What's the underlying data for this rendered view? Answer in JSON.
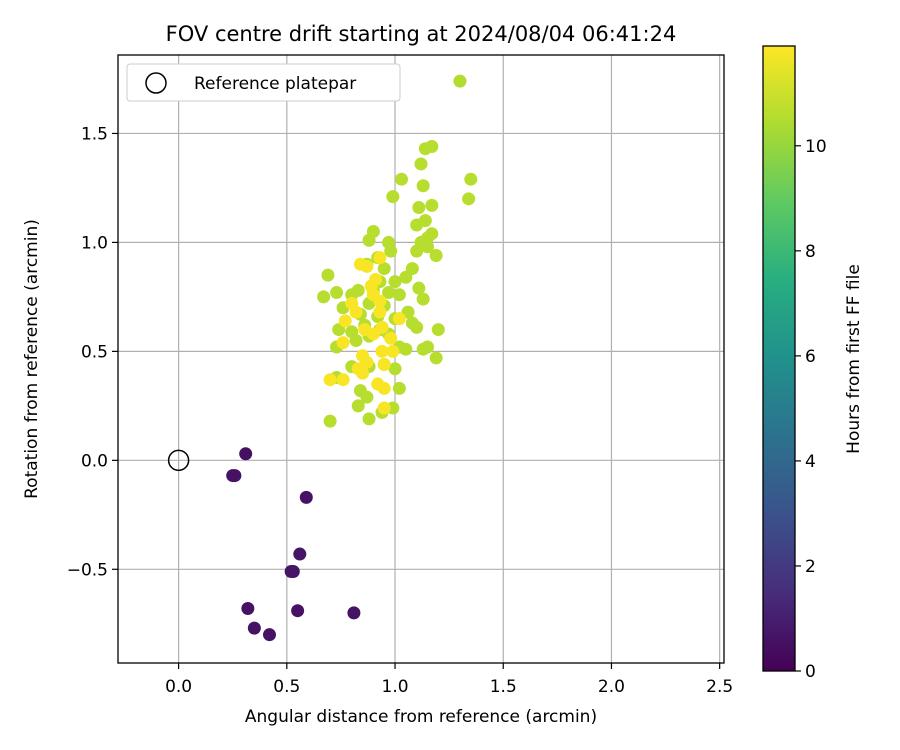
{
  "chart_data": {
    "type": "scatter",
    "title": "FOV centre drift starting at 2024/08/04 06:41:24",
    "xlabel": "Angular distance from reference (arcmin)",
    "ylabel": "Rotation from reference (arcmin)",
    "xlim": [
      -0.28,
      2.52
    ],
    "ylim": [
      -0.93,
      1.86
    ],
    "xticks": [
      0.0,
      0.5,
      1.0,
      1.5,
      2.0,
      2.5
    ],
    "xtick_labels": [
      "0.0",
      "0.5",
      "1.0",
      "1.5",
      "2.0",
      "2.5"
    ],
    "yticks": [
      -0.5,
      0.0,
      0.5,
      1.0,
      1.5
    ],
    "ytick_labels": [
      "−0.5",
      "0.0",
      "0.5",
      "1.0",
      "1.5"
    ],
    "grid": true,
    "legend": {
      "position": "top-left",
      "entries": [
        "Reference platepar"
      ]
    },
    "colorbar": {
      "label": "Hours from first FF file",
      "colormap": "viridis",
      "range": [
        0,
        11.9
      ],
      "ticks": [
        0,
        2,
        4,
        6,
        8,
        10
      ],
      "tick_labels": [
        "0",
        "2",
        "4",
        "6",
        "8",
        "10"
      ]
    },
    "reference_point": {
      "x": 0.0,
      "y": 0.0
    },
    "points": [
      [
        0.31,
        0.03,
        0.5
      ],
      [
        0.25,
        -0.07,
        0.6
      ],
      [
        0.26,
        -0.07,
        0.6
      ],
      [
        0.59,
        -0.17,
        0.6
      ],
      [
        0.56,
        -0.43,
        0.7
      ],
      [
        0.52,
        -0.51,
        0.7
      ],
      [
        0.53,
        -0.51,
        0.7
      ],
      [
        0.32,
        -0.68,
        0.6
      ],
      [
        0.55,
        -0.69,
        0.6
      ],
      [
        0.81,
        -0.7,
        0.6
      ],
      [
        0.35,
        -0.77,
        0.6
      ],
      [
        0.42,
        -0.8,
        0.6
      ],
      [
        1.3,
        1.74,
        10.5
      ],
      [
        1.17,
        1.44,
        10.6
      ],
      [
        1.14,
        1.43,
        10.6
      ],
      [
        1.12,
        1.36,
        10.6
      ],
      [
        1.35,
        1.29,
        10.6
      ],
      [
        1.03,
        1.29,
        10.6
      ],
      [
        1.13,
        1.26,
        10.6
      ],
      [
        0.99,
        1.21,
        10.6
      ],
      [
        1.34,
        1.2,
        10.6
      ],
      [
        1.17,
        1.17,
        10.6
      ],
      [
        1.11,
        1.16,
        10.6
      ],
      [
        1.14,
        1.1,
        10.6
      ],
      [
        1.1,
        1.08,
        10.6
      ],
      [
        0.9,
        1.05,
        10.6
      ],
      [
        1.17,
        1.04,
        10.6
      ],
      [
        1.15,
        1.02,
        10.6
      ],
      [
        0.88,
        1.01,
        10.6
      ],
      [
        0.97,
        1.0,
        10.6
      ],
      [
        1.12,
        1.0,
        10.6
      ],
      [
        1.15,
        0.98,
        10.6
      ],
      [
        1.1,
        0.96,
        10.6
      ],
      [
        0.98,
        0.96,
        10.6
      ],
      [
        1.19,
        0.94,
        10.6
      ],
      [
        0.92,
        0.93,
        10.6
      ],
      [
        0.87,
        0.9,
        10.6
      ],
      [
        0.95,
        0.88,
        10.6
      ],
      [
        1.08,
        0.88,
        10.6
      ],
      [
        0.69,
        0.85,
        10.6
      ],
      [
        1.05,
        0.84,
        10.6
      ],
      [
        0.93,
        0.82,
        10.6
      ],
      [
        1.0,
        0.82,
        10.6
      ],
      [
        1.11,
        0.79,
        10.6
      ],
      [
        0.83,
        0.78,
        10.6
      ],
      [
        0.9,
        0.78,
        10.6
      ],
      [
        0.97,
        0.77,
        10.6
      ],
      [
        0.73,
        0.77,
        10.6
      ],
      [
        0.8,
        0.76,
        10.6
      ],
      [
        1.02,
        0.76,
        10.6
      ],
      [
        0.67,
        0.75,
        10.6
      ],
      [
        1.13,
        0.74,
        10.6
      ],
      [
        0.88,
        0.72,
        10.6
      ],
      [
        0.95,
        0.71,
        10.6
      ],
      [
        0.76,
        0.7,
        10.6
      ],
      [
        1.06,
        0.68,
        10.6
      ],
      [
        0.84,
        0.67,
        10.6
      ],
      [
        0.92,
        0.66,
        10.6
      ],
      [
        1.0,
        0.65,
        10.6
      ],
      [
        1.08,
        0.63,
        10.6
      ],
      [
        1.1,
        0.61,
        10.6
      ],
      [
        0.86,
        0.62,
        10.6
      ],
      [
        0.74,
        0.6,
        10.6
      ],
      [
        1.2,
        0.6,
        10.6
      ],
      [
        0.93,
        0.6,
        10.6
      ],
      [
        0.8,
        0.59,
        10.6
      ],
      [
        0.88,
        0.57,
        10.6
      ],
      [
        0.97,
        0.58,
        10.6
      ],
      [
        0.82,
        0.55,
        10.6
      ],
      [
        0.73,
        0.52,
        10.6
      ],
      [
        1.15,
        0.52,
        10.6
      ],
      [
        1.02,
        0.52,
        10.6
      ],
      [
        1.13,
        0.51,
        10.6
      ],
      [
        1.05,
        0.51,
        10.6
      ],
      [
        1.19,
        0.47,
        10.6
      ],
      [
        0.95,
        0.44,
        10.6
      ],
      [
        0.8,
        0.43,
        10.6
      ],
      [
        0.88,
        0.43,
        10.6
      ],
      [
        1.0,
        0.42,
        10.6
      ],
      [
        0.73,
        0.38,
        10.6
      ],
      [
        1.02,
        0.33,
        10.6
      ],
      [
        0.84,
        0.32,
        10.6
      ],
      [
        0.87,
        0.29,
        10.6
      ],
      [
        0.83,
        0.25,
        10.6
      ],
      [
        0.99,
        0.24,
        10.6
      ],
      [
        0.94,
        0.22,
        10.6
      ],
      [
        0.88,
        0.19,
        10.6
      ],
      [
        0.7,
        0.18,
        10.6
      ],
      [
        0.87,
        0.89,
        11.8
      ],
      [
        0.84,
        0.9,
        11.8
      ],
      [
        0.93,
        0.93,
        11.8
      ],
      [
        0.91,
        0.83,
        11.8
      ],
      [
        0.89,
        0.8,
        11.8
      ],
      [
        0.9,
        0.76,
        11.8
      ],
      [
        0.93,
        0.73,
        11.8
      ],
      [
        0.8,
        0.72,
        11.8
      ],
      [
        0.82,
        0.68,
        11.8
      ],
      [
        0.93,
        0.68,
        11.8
      ],
      [
        1.02,
        0.65,
        11.8
      ],
      [
        0.77,
        0.64,
        11.8
      ],
      [
        0.94,
        0.61,
        11.8
      ],
      [
        0.86,
        0.6,
        11.8
      ],
      [
        0.9,
        0.58,
        11.8
      ],
      [
        0.98,
        0.56,
        11.8
      ],
      [
        0.76,
        0.54,
        11.8
      ],
      [
        0.94,
        0.5,
        11.8
      ],
      [
        0.99,
        0.5,
        11.8
      ],
      [
        0.85,
        0.48,
        11.8
      ],
      [
        0.87,
        0.45,
        11.8
      ],
      [
        0.95,
        0.44,
        11.8
      ],
      [
        0.83,
        0.42,
        11.8
      ],
      [
        0.85,
        0.4,
        11.8
      ],
      [
        0.76,
        0.37,
        11.8
      ],
      [
        0.7,
        0.37,
        11.8
      ],
      [
        0.92,
        0.35,
        11.8
      ],
      [
        0.95,
        0.33,
        11.8
      ],
      [
        0.95,
        0.24,
        11.8
      ]
    ]
  }
}
